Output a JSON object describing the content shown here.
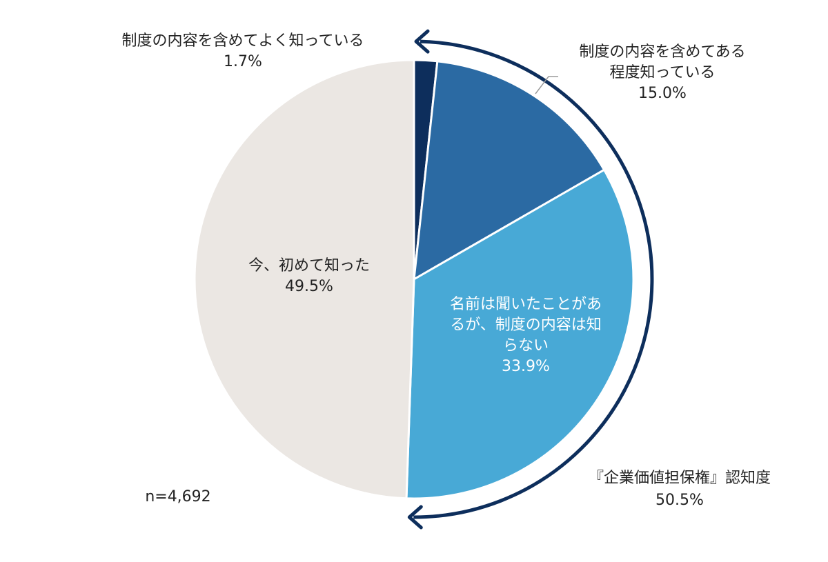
{
  "chart_data": {
    "type": "pie",
    "start": "12 o'clock",
    "direction": "clockwise",
    "sample_note": "n=4,692",
    "slices": [
      {
        "label_lines": [
          "制度の内容を含めてよく知っている"
        ],
        "value": 1.7,
        "value_label": "1.7%",
        "color": "#0d2e5c",
        "label_color": "#222222"
      },
      {
        "label_lines": [
          "制度の内容を含めてある",
          "程度知っている"
        ],
        "value": 15.0,
        "value_label": "15.0%",
        "color": "#2b6aa3",
        "label_color": "#222222"
      },
      {
        "label_lines": [
          "名前は聞いたことがあ",
          "るが、制度の内容は知",
          "らない"
        ],
        "value": 33.9,
        "value_label": "33.9%",
        "color": "#48a9d6",
        "label_color": "#ffffff"
      },
      {
        "label_lines": [
          "今、初めて知った"
        ],
        "value": 49.5,
        "value_label": "49.5%",
        "color": "#ebe7e3",
        "label_color": "#222222"
      }
    ],
    "bracket": {
      "label": "『企業価値担保権』認知度",
      "value": 50.5,
      "value_label": "50.5%",
      "color": "#0d2e5c"
    }
  }
}
